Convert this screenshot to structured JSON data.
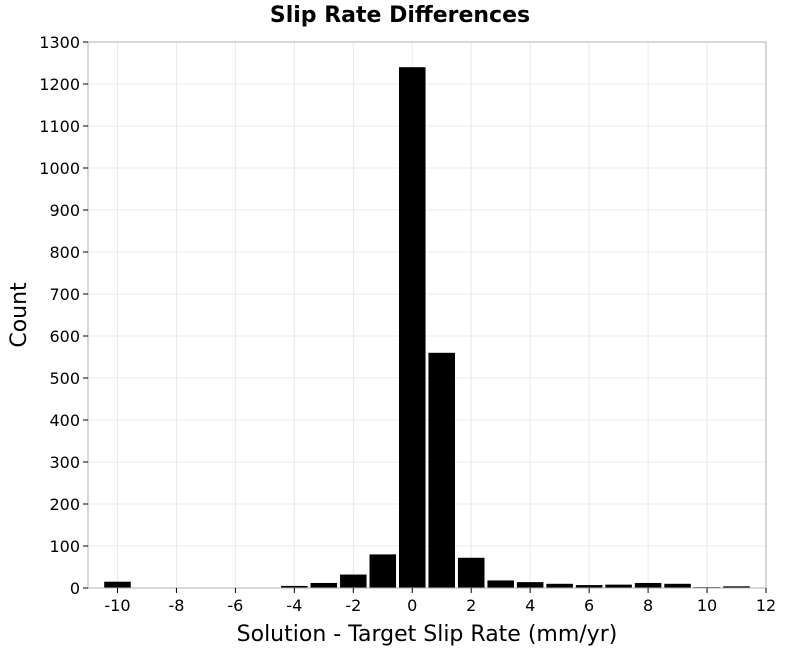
{
  "chart_data": {
    "type": "bar",
    "title": "Slip Rate Differences",
    "xlabel": "Solution - Target Slip Rate (mm/yr)",
    "ylabel": "Count",
    "xlim": [
      -11,
      12
    ],
    "ylim": [
      0,
      1300
    ],
    "xticks": [
      -10,
      -8,
      -6,
      -4,
      -2,
      0,
      2,
      4,
      6,
      8,
      10,
      12
    ],
    "yticks": [
      0,
      100,
      200,
      300,
      400,
      500,
      600,
      700,
      800,
      900,
      1000,
      1100,
      1200,
      1300
    ],
    "grid": true,
    "bar_color": "#000000",
    "bins": [
      {
        "x": -10,
        "count": 15
      },
      {
        "x": -9,
        "count": 0
      },
      {
        "x": -8,
        "count": 0
      },
      {
        "x": -7,
        "count": 0
      },
      {
        "x": -6,
        "count": 0
      },
      {
        "x": -5,
        "count": 0
      },
      {
        "x": -4,
        "count": 5
      },
      {
        "x": -3,
        "count": 12
      },
      {
        "x": -2,
        "count": 32
      },
      {
        "x": -1,
        "count": 80
      },
      {
        "x": 0,
        "count": 1240
      },
      {
        "x": 1,
        "count": 560
      },
      {
        "x": 2,
        "count": 72
      },
      {
        "x": 3,
        "count": 18
      },
      {
        "x": 4,
        "count": 14
      },
      {
        "x": 5,
        "count": 10
      },
      {
        "x": 6,
        "count": 7
      },
      {
        "x": 7,
        "count": 8
      },
      {
        "x": 8,
        "count": 12
      },
      {
        "x": 9,
        "count": 10
      },
      {
        "x": 10,
        "count": 2
      },
      {
        "x": 11,
        "count": 4
      }
    ]
  }
}
